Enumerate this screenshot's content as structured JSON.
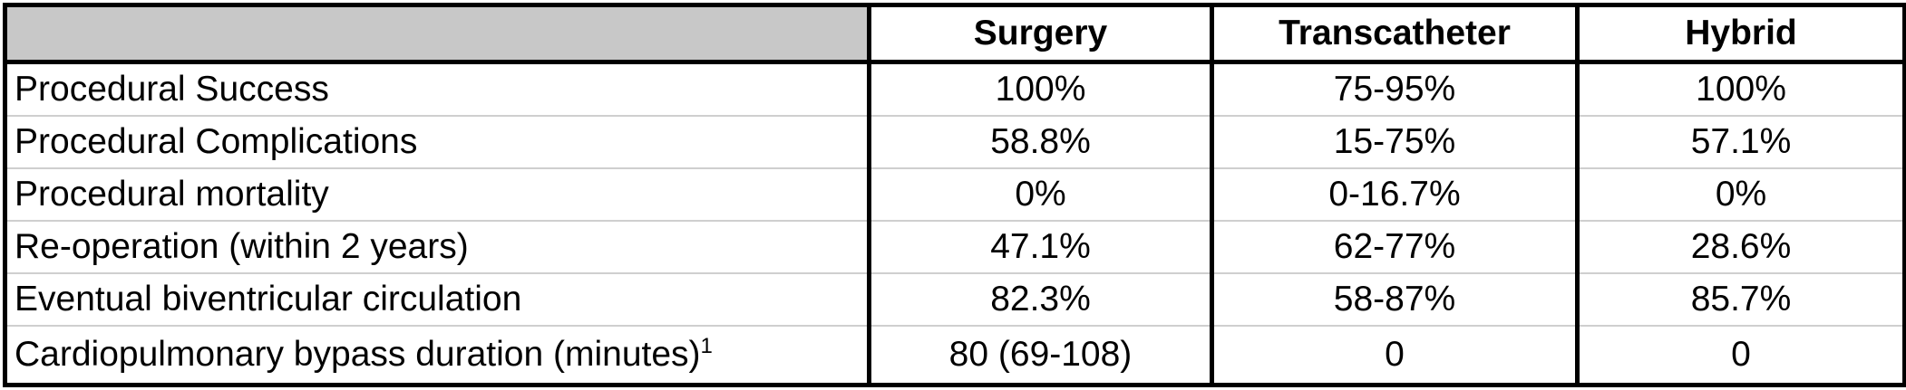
{
  "header": {
    "blank": "",
    "columns": [
      "Surgery",
      "Transcatheter",
      "Hybrid"
    ]
  },
  "rows": [
    {
      "label": "Procedural Success",
      "sup": "",
      "values": [
        "100%",
        "75-95%",
        "100%"
      ]
    },
    {
      "label": "Procedural Complications",
      "sup": "",
      "values": [
        "58.8%",
        "15-75%",
        "57.1%"
      ]
    },
    {
      "label": "Procedural mortality",
      "sup": "",
      "values": [
        "0%",
        "0-16.7%",
        "0%"
      ]
    },
    {
      "label": "Re-operation (within 2 years)",
      "sup": "",
      "values": [
        "47.1%",
        "62-77%",
        "28.6%"
      ]
    },
    {
      "label": "Eventual biventricular circulation",
      "sup": "",
      "values": [
        "82.3%",
        "58-87%",
        "85.7%"
      ]
    },
    {
      "label": "Cardiopulmonary bypass duration (minutes)",
      "sup": "1",
      "values": [
        "80 (69-108)",
        "0",
        "0"
      ]
    }
  ]
}
